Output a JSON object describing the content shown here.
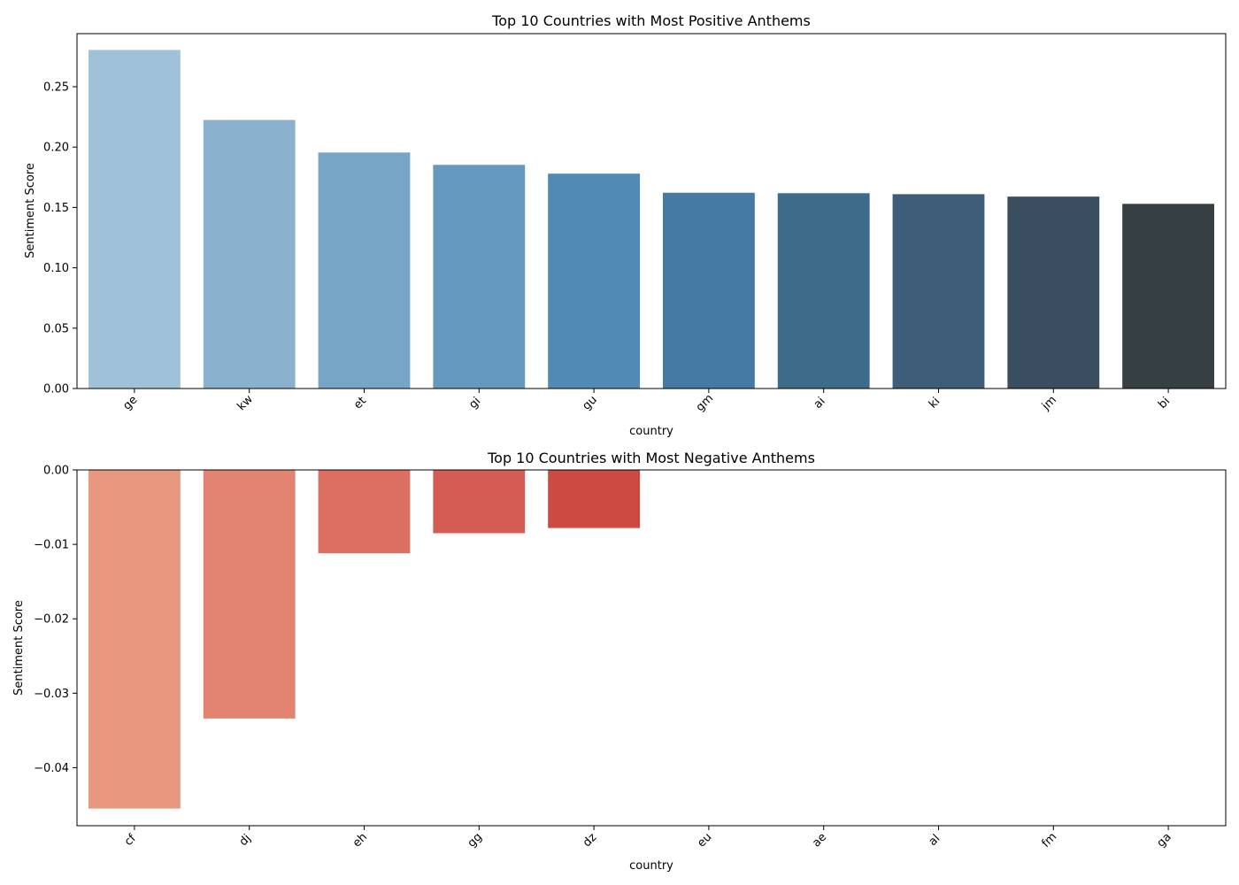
{
  "chart_data": [
    {
      "type": "bar",
      "title": "Top 10 Countries with Most Positive Anthems",
      "xlabel": "country",
      "ylabel": "Sentiment Score",
      "categories": [
        "ge",
        "kw",
        "et",
        "gi",
        "gu",
        "gm",
        "ai",
        "ki",
        "jm",
        "bi"
      ],
      "values": [
        0.2805,
        0.2225,
        0.1955,
        0.1853,
        0.178,
        0.1622,
        0.1618,
        0.161,
        0.159,
        0.153
      ],
      "ylim": [
        0,
        0.294
      ],
      "yticks": [
        0.0,
        0.05,
        0.1,
        0.15,
        0.2,
        0.25
      ],
      "ytick_labels": [
        "0.00",
        "0.05",
        "0.10",
        "0.15",
        "0.20",
        "0.25"
      ],
      "bar_colors": [
        "#9fc2d9",
        "#8ab2cf",
        "#77a5c6",
        "#6599be",
        "#518ab5",
        "#457aa4",
        "#3e6b8a",
        "#3e5d78",
        "#3a4e60",
        "#353f44"
      ],
      "grid": false,
      "legend": false
    },
    {
      "type": "bar",
      "title": "Top 10 Countries with Most Negative Anthems",
      "xlabel": "country",
      "ylabel": "Sentiment Score",
      "categories": [
        "cf",
        "dj",
        "eh",
        "gg",
        "dz",
        "eu",
        "ae",
        "al",
        "fm",
        "ga"
      ],
      "values": [
        -0.0455,
        -0.0334,
        -0.0112,
        -0.0085,
        -0.0078,
        0,
        0,
        0,
        0,
        0
      ],
      "ylim": [
        -0.0478,
        0
      ],
      "yticks": [
        0.0,
        -0.01,
        -0.02,
        -0.03,
        -0.04
      ],
      "ytick_labels": [
        "0.00",
        "−0.01",
        "−0.02",
        "−0.03",
        "−0.04"
      ],
      "bar_colors": [
        "#e99880",
        "#e38472",
        "#dc6f61",
        "#d55c54",
        "#cc4a42",
        "#c23b36",
        "#b5302c",
        "#a82724",
        "#991f1d",
        "#8b1818"
      ],
      "grid": false,
      "legend": false
    }
  ]
}
